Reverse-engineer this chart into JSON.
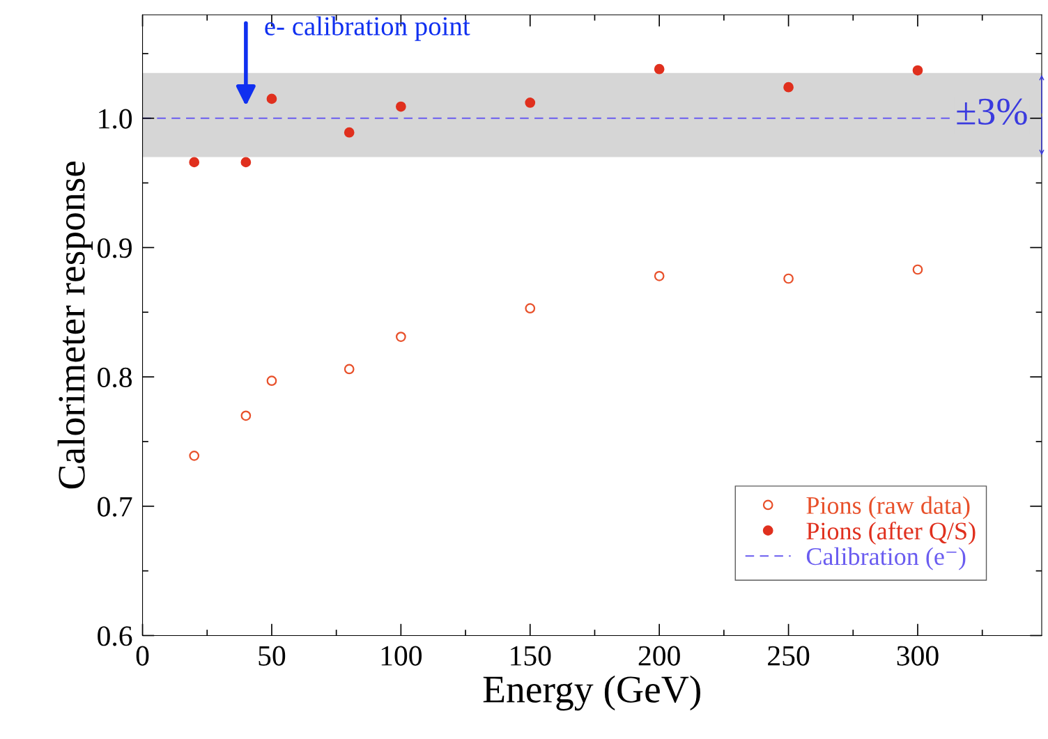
{
  "chart_data": {
    "type": "scatter",
    "xlabel": "Energy (GeV)",
    "ylabel": "Calorimeter response",
    "x": [
      20,
      40,
      50,
      80,
      100,
      150,
      200,
      250,
      300
    ],
    "series": [
      {
        "name": "Pions (raw data)",
        "color": "#e8502a",
        "marker": "circle",
        "values": [
          0.739,
          0.77,
          0.797,
          0.806,
          0.831,
          0.853,
          0.878,
          0.876,
          0.883
        ]
      },
      {
        "name": "Pions (after Q/S)",
        "color": "#e0301e",
        "marker": "circle",
        "values": [
          0.966,
          0.966,
          1.015,
          0.989,
          1.009,
          1.012,
          1.038,
          1.024,
          1.037
        ]
      }
    ],
    "ref_lines": [
      {
        "axis": "y",
        "value": 1.0,
        "label": "Calibration (e⁻)",
        "color": "#6a5cf0",
        "line_style": "dashed"
      }
    ],
    "bands": [
      {
        "axis": "y",
        "from": 0.97,
        "to": 1.035,
        "label": "±3%",
        "color": "#d6d6d6"
      }
    ],
    "annotations": [
      {
        "text": "e- calibration point",
        "x": 40,
        "y": 1.0
      }
    ],
    "xlim": [
      0,
      348
    ],
    "ylim": [
      0.6,
      1.08
    ],
    "xticks": [
      0,
      50,
      100,
      150,
      200,
      250,
      300
    ],
    "yticks": [
      0.6,
      {
        "value": 0.7,
        "label": "0.7"
      },
      {
        "value": 0.8,
        "label": "0.8"
      },
      {
        "value": 0.9,
        "label": "0.9"
      },
      {
        "value": 1.0,
        "label": "1.0"
      }
    ],
    "grid": false,
    "legend": "bottom right"
  }
}
